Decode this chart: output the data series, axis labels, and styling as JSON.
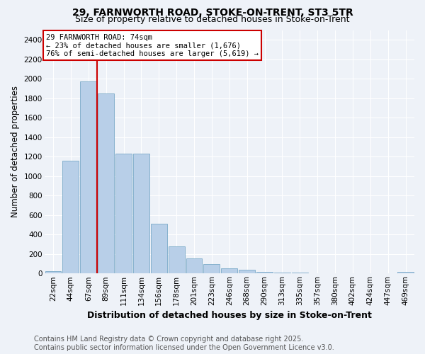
{
  "title": "29, FARNWORTH ROAD, STOKE-ON-TRENT, ST3 5TR",
  "subtitle": "Size of property relative to detached houses in Stoke-on-Trent",
  "xlabel": "Distribution of detached houses by size in Stoke-on-Trent",
  "ylabel": "Number of detached properties",
  "categories": [
    "22sqm",
    "44sqm",
    "67sqm",
    "89sqm",
    "111sqm",
    "134sqm",
    "156sqm",
    "178sqm",
    "201sqm",
    "223sqm",
    "246sqm",
    "268sqm",
    "290sqm",
    "313sqm",
    "335sqm",
    "357sqm",
    "380sqm",
    "402sqm",
    "424sqm",
    "447sqm",
    "469sqm"
  ],
  "values": [
    25,
    1160,
    1970,
    1850,
    1230,
    1230,
    510,
    280,
    155,
    95,
    55,
    40,
    15,
    10,
    10,
    5,
    5,
    5,
    5,
    5,
    15
  ],
  "bar_color": "#b8cfe8",
  "bar_edge_color": "#7aaac8",
  "red_line_x": 2.5,
  "red_line_label": "29 FARNWORTH ROAD: 74sqm",
  "annotation_line1": "← 23% of detached houses are smaller (1,676)",
  "annotation_line2": "76% of semi-detached houses are larger (5,619) →",
  "annotation_box_color": "#cc0000",
  "ylim": [
    0,
    2500
  ],
  "yticks": [
    0,
    200,
    400,
    600,
    800,
    1000,
    1200,
    1400,
    1600,
    1800,
    2000,
    2200,
    2400
  ],
  "footer_line1": "Contains HM Land Registry data © Crown copyright and database right 2025.",
  "footer_line2": "Contains public sector information licensed under the Open Government Licence v3.0.",
  "bg_color": "#eef2f8",
  "grid_color": "#ffffff",
  "title_fontsize": 10,
  "subtitle_fontsize": 9,
  "axis_label_fontsize": 8.5,
  "tick_fontsize": 7.5,
  "footer_fontsize": 7
}
